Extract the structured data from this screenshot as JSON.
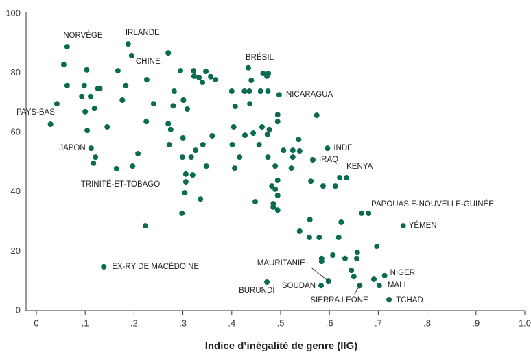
{
  "chart_data": {
    "type": "scatter",
    "xlabel": "Indice d’inégalité de genre (IIG)",
    "color": "#0b6b4e",
    "xlim": [
      0,
      1
    ],
    "ylim": [
      0,
      100
    ],
    "xticks": [
      0,
      {
        "value": 0.1,
        "label": ".1"
      },
      {
        "value": 0.2,
        "label": ".2"
      },
      {
        "value": 0.3,
        "label": ".3"
      },
      {
        "value": 0.4,
        "label": ".4"
      },
      {
        "value": 0.5,
        "label": ".5"
      },
      {
        "value": 0.6,
        "label": ".6"
      },
      {
        "value": 0.7,
        "label": ".7"
      },
      {
        "value": 0.8,
        "label": ".8"
      },
      {
        "value": 0.9,
        "label": ".9"
      },
      {
        "value": 1,
        "label": "1.0"
      }
    ],
    "yticks": [
      0,
      20,
      40,
      60,
      80,
      100
    ],
    "x": [
      0.063,
      0.188,
      0.195,
      0.434,
      0.497,
      0.042,
      0.112,
      0.164,
      0.596,
      0.566,
      0.621,
      0.68,
      0.751,
      0.138,
      0.598,
      0.583,
      0.472,
      0.662,
      0.713,
      0.702,
      0.722,
      0.056,
      0.063,
      0.029,
      0.103,
      0.098,
      0.093,
      0.111,
      0.1,
      0.126,
      0.13,
      0.119,
      0.104,
      0.145,
      0.121,
      0.117,
      0.167,
      0.183,
      0.176,
      0.197,
      0.208,
      0.226,
      0.24,
      0.225,
      0.27,
      0.295,
      0.282,
      0.28,
      0.301,
      0.309,
      0.27,
      0.275,
      0.272,
      0.223,
      0.3,
      0.299,
      0.306,
      0.306,
      0.304,
      0.298,
      0.317,
      0.326,
      0.32,
      0.341,
      0.348,
      0.336,
      0.322,
      0.323,
      0.333,
      0.347,
      0.34,
      0.357,
      0.367,
      0.36,
      0.4,
      0.407,
      0.404,
      0.401,
      0.406,
      0.416,
      0.427,
      0.426,
      0.436,
      0.437,
      0.44,
      0.444,
      0.459,
      0.474,
      0.464,
      0.472,
      0.475,
      0.462,
      0.456,
      0.473,
      0.477,
      0.494,
      0.494,
      0.489,
      0.474,
      0.494,
      0.494,
      0.482,
      0.489,
      0.485,
      0.485,
      0.494,
      0.448,
      0.506,
      0.525,
      0.537,
      0.539,
      0.525,
      0.522,
      0.574,
      0.562,
      0.587,
      0.612,
      0.635,
      0.539,
      0.56,
      0.559,
      0.579,
      0.624,
      0.619,
      0.697,
      0.584,
      0.584,
      0.607,
      0.632,
      0.656,
      0.657,
      0.645,
      0.65,
      0.691,
      0.666
    ],
    "y": [
      88.9,
      89.8,
      85.9,
      81.8,
      72.7,
      69.7,
      54.7,
      47.8,
      54.7,
      50.8,
      44.8,
      32.8,
      28.6,
      14.8,
      9.9,
      8.5,
      9.7,
      8.5,
      11.8,
      8.5,
      3.7,
      82.9,
      75.8,
      62.8,
      81.1,
      75.8,
      72.1,
      72.1,
      67,
      74.8,
      74.8,
      68.1,
      60.7,
      61.9,
      51.7,
      49.7,
      80.8,
      75.8,
      70.9,
      48.7,
      52.9,
      77.8,
      69.7,
      63.7,
      86.8,
      80.8,
      73.9,
      69,
      70.9,
      67.9,
      63,
      61,
      55.9,
      28.6,
      58.2,
      51.7,
      46,
      43.4,
      39.7,
      32.8,
      51.7,
      54,
      45.7,
      55.9,
      48.7,
      37.6,
      80.8,
      79,
      78.5,
      80.6,
      76.9,
      78.8,
      77.8,
      58.9,
      73.9,
      68.8,
      61.9,
      55.9,
      48,
      51.7,
      59.1,
      73.9,
      73.9,
      69.7,
      77.6,
      59.8,
      73.9,
      73.9,
      79.9,
      79,
      79.9,
      61.9,
      55.9,
      59.4,
      61,
      66,
      63.7,
      48.7,
      51.7,
      43.9,
      38.8,
      42,
      40.9,
      36,
      34.9,
      33.9,
      36.7,
      54,
      54,
      57.7,
      53.8,
      51.7,
      48,
      65.8,
      43.6,
      42,
      42,
      44.8,
      26.8,
      30.7,
      24.7,
      24.7,
      29.8,
      24.7,
      21.7,
      17.6,
      16.6,
      18.7,
      17.6,
      17.6,
      19.6,
      13.6,
      11.5,
      10.6,
      32.8
    ],
    "labels": [
      "NORVÈGE",
      "IRLANDE",
      "CHINE",
      "BRÉSIL",
      "NICARAGUA",
      "PAYS-BAS",
      "JAPON",
      "TRINITÉ-ET-TOBAGO",
      "INDE",
      "IRAQ",
      "KENYA",
      "PAPOUASIE-NOUVELLE-GUINÉE",
      "YÉMEN",
      "EX-RY DE MACÉDOINE",
      "MAURITANIE",
      "SOUDAN",
      "BURUNDI",
      "SIERRA LEONE",
      "NIGER",
      "MALI",
      "TCHAD"
    ]
  }
}
